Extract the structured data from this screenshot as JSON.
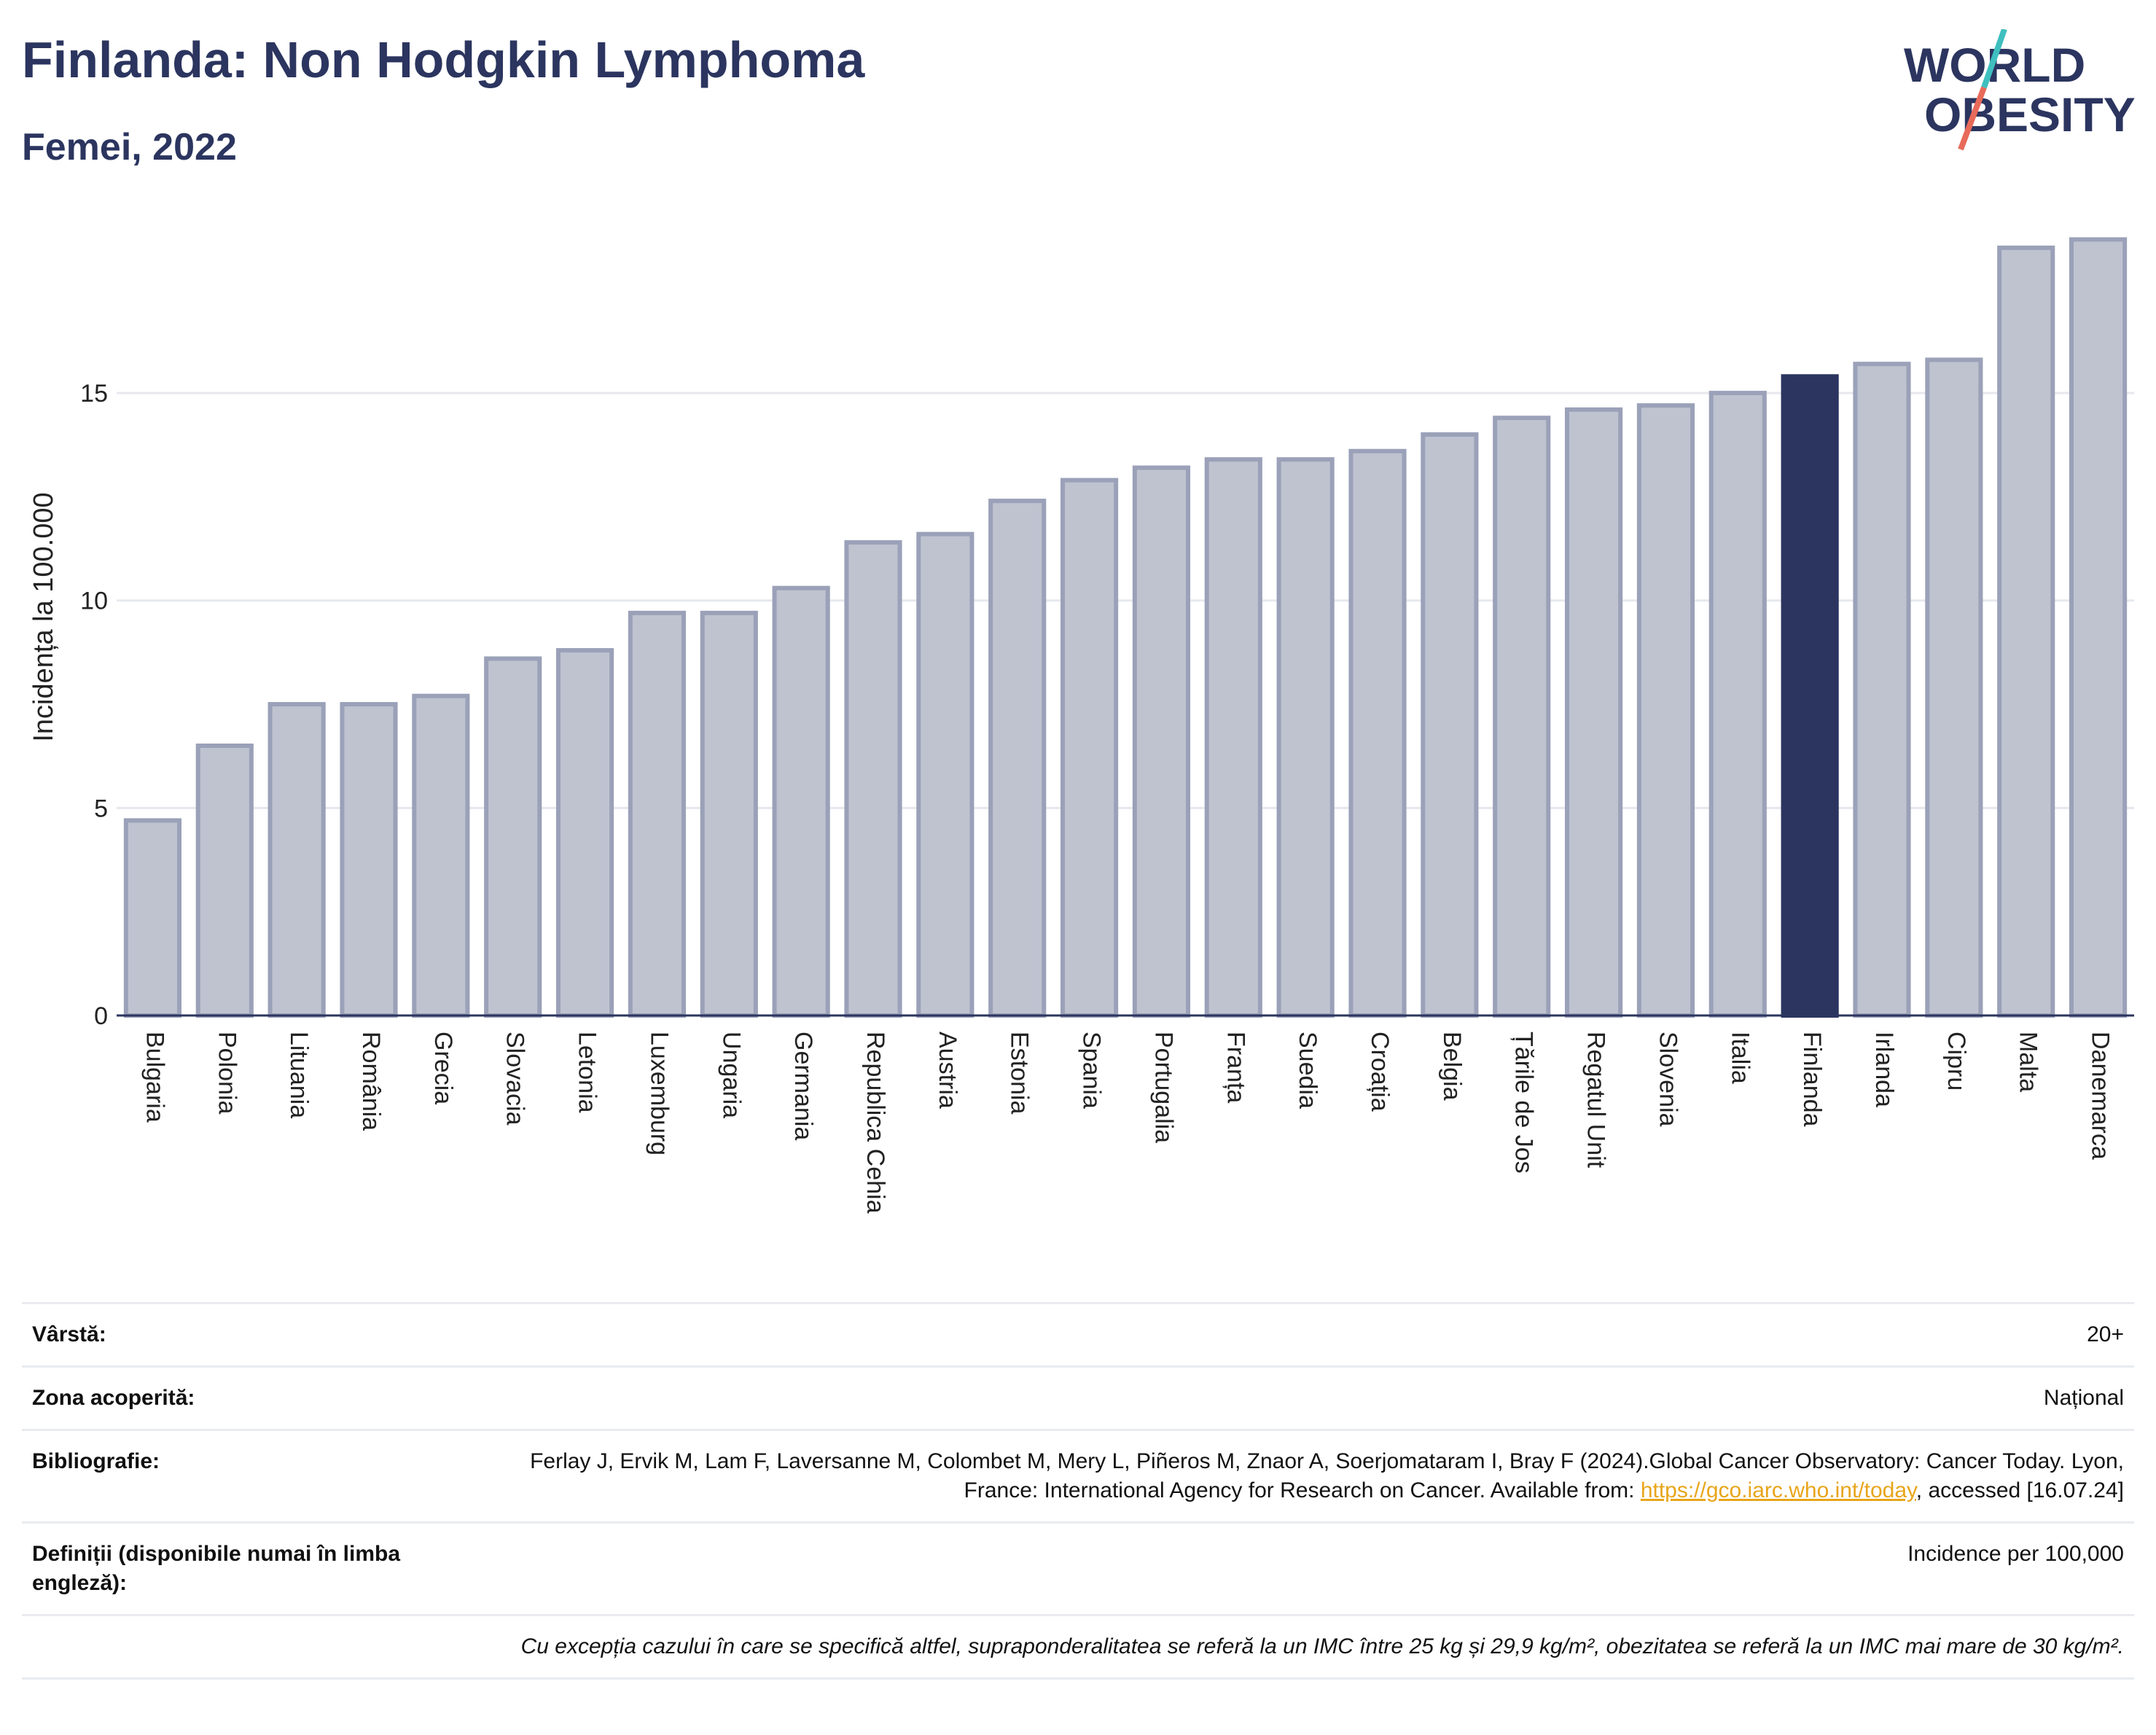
{
  "header": {
    "title": "Finlanda: Non Hodgkin Lymphoma",
    "subtitle": "Femei, 2022"
  },
  "logo": {
    "line1": "WORLD",
    "line2": "OBESITY",
    "colors": {
      "text": "#2b355f",
      "slash_top": "#3fbfbf",
      "slash_bottom": "#e86a5a"
    }
  },
  "colors": {
    "bar_default": "#bfc3d0",
    "bar_default_stroke": "#9aa1b8",
    "bar_highlight": "#2b355f",
    "grid": "#e6e8ee",
    "axis_text": "#222222"
  },
  "chart_data": {
    "type": "bar",
    "title": "Finlanda: Non Hodgkin Lymphoma",
    "subtitle": "Femei, 2022",
    "ylabel": "Incidența la 100.000",
    "xlabel": "",
    "ylim": [
      0,
      19.2
    ],
    "yticks": [
      0,
      5,
      10,
      15
    ],
    "grid": true,
    "highlight": "Finlanda",
    "categories": [
      "Bulgaria",
      "Polonia",
      "Lituania",
      "România",
      "Grecia",
      "Slovacia",
      "Letonia",
      "Luxemburg",
      "Ungaria",
      "Germania",
      "Republica Cehia",
      "Austria",
      "Estonia",
      "Spania",
      "Portugalia",
      "Franța",
      "Suedia",
      "Croația",
      "Belgia",
      "Țările de Jos",
      "Regatul Unit",
      "Slovenia",
      "Italia",
      "Finlanda",
      "Irlanda",
      "Cipru",
      "Malta",
      "Danemarca"
    ],
    "values": [
      4.7,
      6.5,
      7.5,
      7.5,
      7.7,
      8.6,
      8.8,
      9.7,
      9.7,
      10.3,
      11.4,
      11.6,
      12.4,
      12.9,
      13.2,
      13.4,
      13.4,
      13.6,
      14.0,
      14.4,
      14.6,
      14.7,
      15.0,
      15.4,
      15.7,
      15.8,
      18.5,
      18.7
    ]
  },
  "info": {
    "age_label": "Vârstă:",
    "age_value": "20+",
    "area_label": "Zona acoperită:",
    "area_value": "Național",
    "biblio_label": "Bibliografie:",
    "biblio_text": "Ferlay J, Ervik M, Lam F, Laversanne M, Colombet M, Mery L, Piñeros M, Znaor A, Soerjomataram I, Bray F (2024).Global Cancer Observatory: Cancer Today. Lyon, France: International Agency for Research on Cancer. Available from: ",
    "biblio_link": "https://gco.iarc.who.int/today",
    "biblio_suffix": ", accessed [16.07.24]",
    "def_label": "Definiții (disponibile numai în limba engleză):",
    "def_value": "Incidence per 100,000",
    "note": "Cu excepția cazului în care se specifică altfel, supraponderalitatea se referă la un IMC între 25 kg și 29,9 kg/m², obezitatea se referă la un IMC mai mare de 30 kg/m²."
  }
}
